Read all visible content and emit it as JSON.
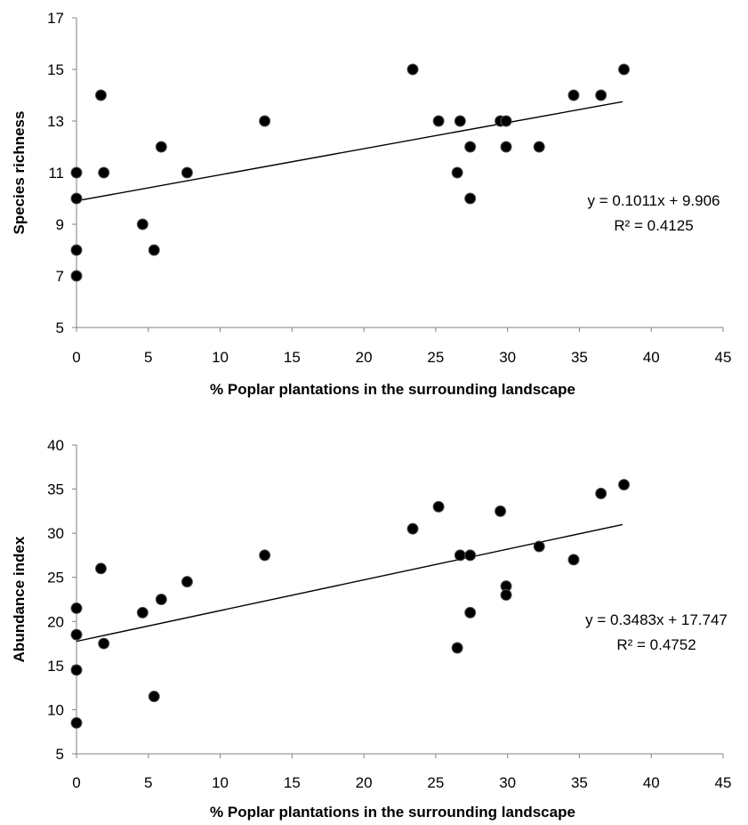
{
  "chart_data": [
    {
      "type": "scatter",
      "title": "",
      "xlabel": "% Poplar plantations in the surrounding landscape",
      "ylabel": "Species richness",
      "xlim": [
        0,
        45
      ],
      "ylim": [
        5,
        17
      ],
      "xticks": [
        0,
        5,
        10,
        15,
        20,
        25,
        30,
        35,
        40,
        45
      ],
      "yticks": [
        5,
        7,
        9,
        11,
        13,
        15,
        17
      ],
      "grid": false,
      "legend": "none",
      "marker_color": "#000000",
      "trendline": {
        "slope": 0.1011,
        "intercept": 9.906,
        "x_range": [
          0,
          38
        ]
      },
      "annotation": {
        "equation": "y = 0.1011x + 9.906",
        "r2": "R² = 0.4125"
      },
      "points": [
        {
          "x": 0,
          "y": 11
        },
        {
          "x": 0,
          "y": 10
        },
        {
          "x": 0,
          "y": 8
        },
        {
          "x": 0,
          "y": 7
        },
        {
          "x": 1.7,
          "y": 14
        },
        {
          "x": 1.9,
          "y": 11
        },
        {
          "x": 4.6,
          "y": 9
        },
        {
          "x": 5.4,
          "y": 8
        },
        {
          "x": 5.9,
          "y": 12
        },
        {
          "x": 7.7,
          "y": 11
        },
        {
          "x": 13.1,
          "y": 13
        },
        {
          "x": 23.4,
          "y": 15
        },
        {
          "x": 25.2,
          "y": 13
        },
        {
          "x": 26.5,
          "y": 11
        },
        {
          "x": 26.7,
          "y": 13
        },
        {
          "x": 27.4,
          "y": 12
        },
        {
          "x": 27.4,
          "y": 10
        },
        {
          "x": 29.5,
          "y": 13
        },
        {
          "x": 29.9,
          "y": 13
        },
        {
          "x": 29.9,
          "y": 12
        },
        {
          "x": 32.2,
          "y": 12
        },
        {
          "x": 34.6,
          "y": 14
        },
        {
          "x": 36.5,
          "y": 14
        },
        {
          "x": 38.1,
          "y": 15
        }
      ]
    },
    {
      "type": "scatter",
      "title": "",
      "xlabel": "% Poplar plantations in the surrounding landscape",
      "ylabel": "Abundance index",
      "xlim": [
        0,
        45
      ],
      "ylim": [
        5,
        40
      ],
      "xticks": [
        0,
        5,
        10,
        15,
        20,
        25,
        30,
        35,
        40,
        45
      ],
      "yticks": [
        5,
        10,
        15,
        20,
        25,
        30,
        35,
        40
      ],
      "grid": false,
      "legend": "none",
      "marker_color": "#000000",
      "trendline": {
        "slope": 0.3483,
        "intercept": 17.747,
        "x_range": [
          0,
          38
        ]
      },
      "annotation": {
        "equation": "y = 0.3483x + 17.747",
        "r2": "R² = 0.4752"
      },
      "points": [
        {
          "x": 0,
          "y": 21.5
        },
        {
          "x": 0,
          "y": 18.5
        },
        {
          "x": 0,
          "y": 14.5
        },
        {
          "x": 0,
          "y": 8.5
        },
        {
          "x": 1.7,
          "y": 26
        },
        {
          "x": 1.9,
          "y": 17.5
        },
        {
          "x": 4.6,
          "y": 21
        },
        {
          "x": 5.4,
          "y": 11.5
        },
        {
          "x": 5.9,
          "y": 22.5
        },
        {
          "x": 7.7,
          "y": 24.5
        },
        {
          "x": 13.1,
          "y": 27.5
        },
        {
          "x": 23.4,
          "y": 30.5
        },
        {
          "x": 25.2,
          "y": 33
        },
        {
          "x": 26.5,
          "y": 17
        },
        {
          "x": 26.7,
          "y": 27.5
        },
        {
          "x": 27.4,
          "y": 27.5
        },
        {
          "x": 27.4,
          "y": 21
        },
        {
          "x": 29.5,
          "y": 32.5
        },
        {
          "x": 29.9,
          "y": 24
        },
        {
          "x": 29.9,
          "y": 23
        },
        {
          "x": 32.2,
          "y": 28.5
        },
        {
          "x": 34.6,
          "y": 27
        },
        {
          "x": 36.5,
          "y": 34.5
        },
        {
          "x": 38.1,
          "y": 35.5
        }
      ]
    }
  ]
}
